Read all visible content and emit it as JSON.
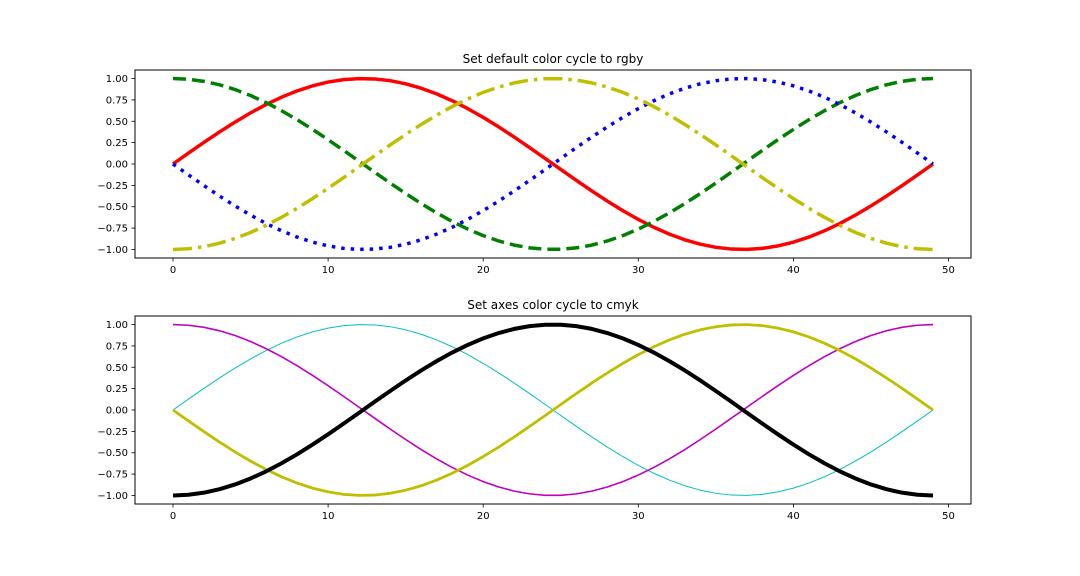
{
  "chart_data": [
    {
      "type": "line",
      "title": "Set default color cycle to rgby",
      "xlabel": "",
      "ylabel": "",
      "xlim": [
        -2.45,
        51.45
      ],
      "ylim": [
        -1.1,
        1.1
      ],
      "x_ticks": [
        0,
        10,
        20,
        30,
        40,
        50
      ],
      "x_tick_labels": [
        "0",
        "10",
        "20",
        "30",
        "40",
        "50"
      ],
      "y_ticks": [
        1.0,
        0.75,
        0.5,
        0.25,
        0.0,
        -0.25,
        -0.5,
        -0.75,
        -1.0
      ],
      "y_tick_labels": [
        "1.00",
        "0.75",
        "0.50",
        "0.25",
        "0.00",
        "−0.25",
        "−0.50",
        "−0.75",
        "−1.00"
      ],
      "grid": false,
      "x_domain": {
        "start": 0,
        "end": 49,
        "count": 50
      },
      "series": [
        {
          "function": "sin(2*pi*x/49)",
          "color": "#ff0000",
          "linestyle": "solid",
          "linewidth": 3.5
        },
        {
          "function": "cos(2*pi*x/49)",
          "color": "#008000",
          "linestyle": "dashed",
          "linewidth": 3.5
        },
        {
          "function": "-sin(2*pi*x/49)",
          "color": "#0000ff",
          "linestyle": "dotted",
          "linewidth": 3.5
        },
        {
          "function": "-cos(2*pi*x/49)",
          "color": "#bfbf00",
          "linestyle": "dashdot",
          "linewidth": 3.5
        }
      ]
    },
    {
      "type": "line",
      "title": "Set axes color cycle to cmyk",
      "xlabel": "",
      "ylabel": "",
      "xlim": [
        -2.45,
        51.45
      ],
      "ylim": [
        -1.1,
        1.1
      ],
      "x_ticks": [
        0,
        10,
        20,
        30,
        40,
        50
      ],
      "x_tick_labels": [
        "0",
        "10",
        "20",
        "30",
        "40",
        "50"
      ],
      "y_ticks": [
        1.0,
        0.75,
        0.5,
        0.25,
        0.0,
        -0.25,
        -0.5,
        -0.75,
        -1.0
      ],
      "y_tick_labels": [
        "1.00",
        "0.75",
        "0.50",
        "0.25",
        "0.00",
        "−0.25",
        "−0.50",
        "−0.75",
        "−1.00"
      ],
      "grid": false,
      "x_domain": {
        "start": 0,
        "end": 49,
        "count": 50
      },
      "series": [
        {
          "function": "sin(2*pi*x/49)",
          "color": "#00bfbf",
          "linestyle": "solid",
          "linewidth": 1
        },
        {
          "function": "cos(2*pi*x/49)",
          "color": "#bf00bf",
          "linestyle": "solid",
          "linewidth": 1.6
        },
        {
          "function": "-sin(2*pi*x/49)",
          "color": "#bfbf00",
          "linestyle": "solid",
          "linewidth": 2.8
        },
        {
          "function": "-cos(2*pi*x/49)",
          "color": "#000000",
          "linestyle": "solid",
          "linewidth": 4
        }
      ]
    }
  ]
}
